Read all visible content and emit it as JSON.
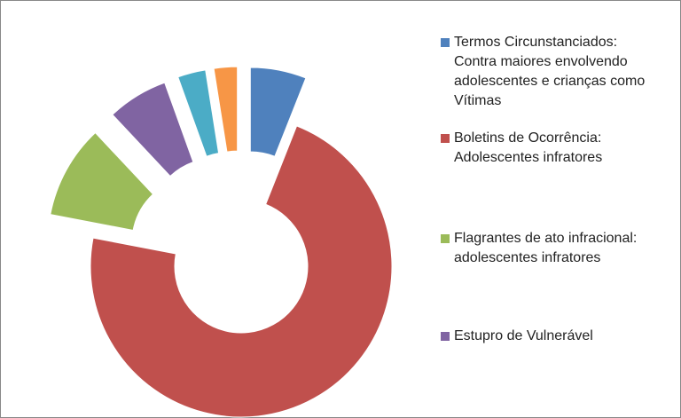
{
  "chart_data": {
    "type": "donut",
    "categories": [
      "Termos Circunstanciados: Contra maiores envolvendo adolescentes e crianças como Vítimas",
      "Boletins de Ocorrência: Adolescentes infratores",
      "Flagrantes de ato infracional: adolescentes infratores",
      "Estupro de Vulnerável",
      null,
      null
    ],
    "values": [
      6,
      72,
      10,
      6.5,
      3,
      2.5
    ],
    "colors": [
      "#4f81bd",
      "#c0504d",
      "#9bbb59",
      "#8064a2",
      "#4bacc6",
      "#f79646"
    ],
    "legend": "right"
  }
}
